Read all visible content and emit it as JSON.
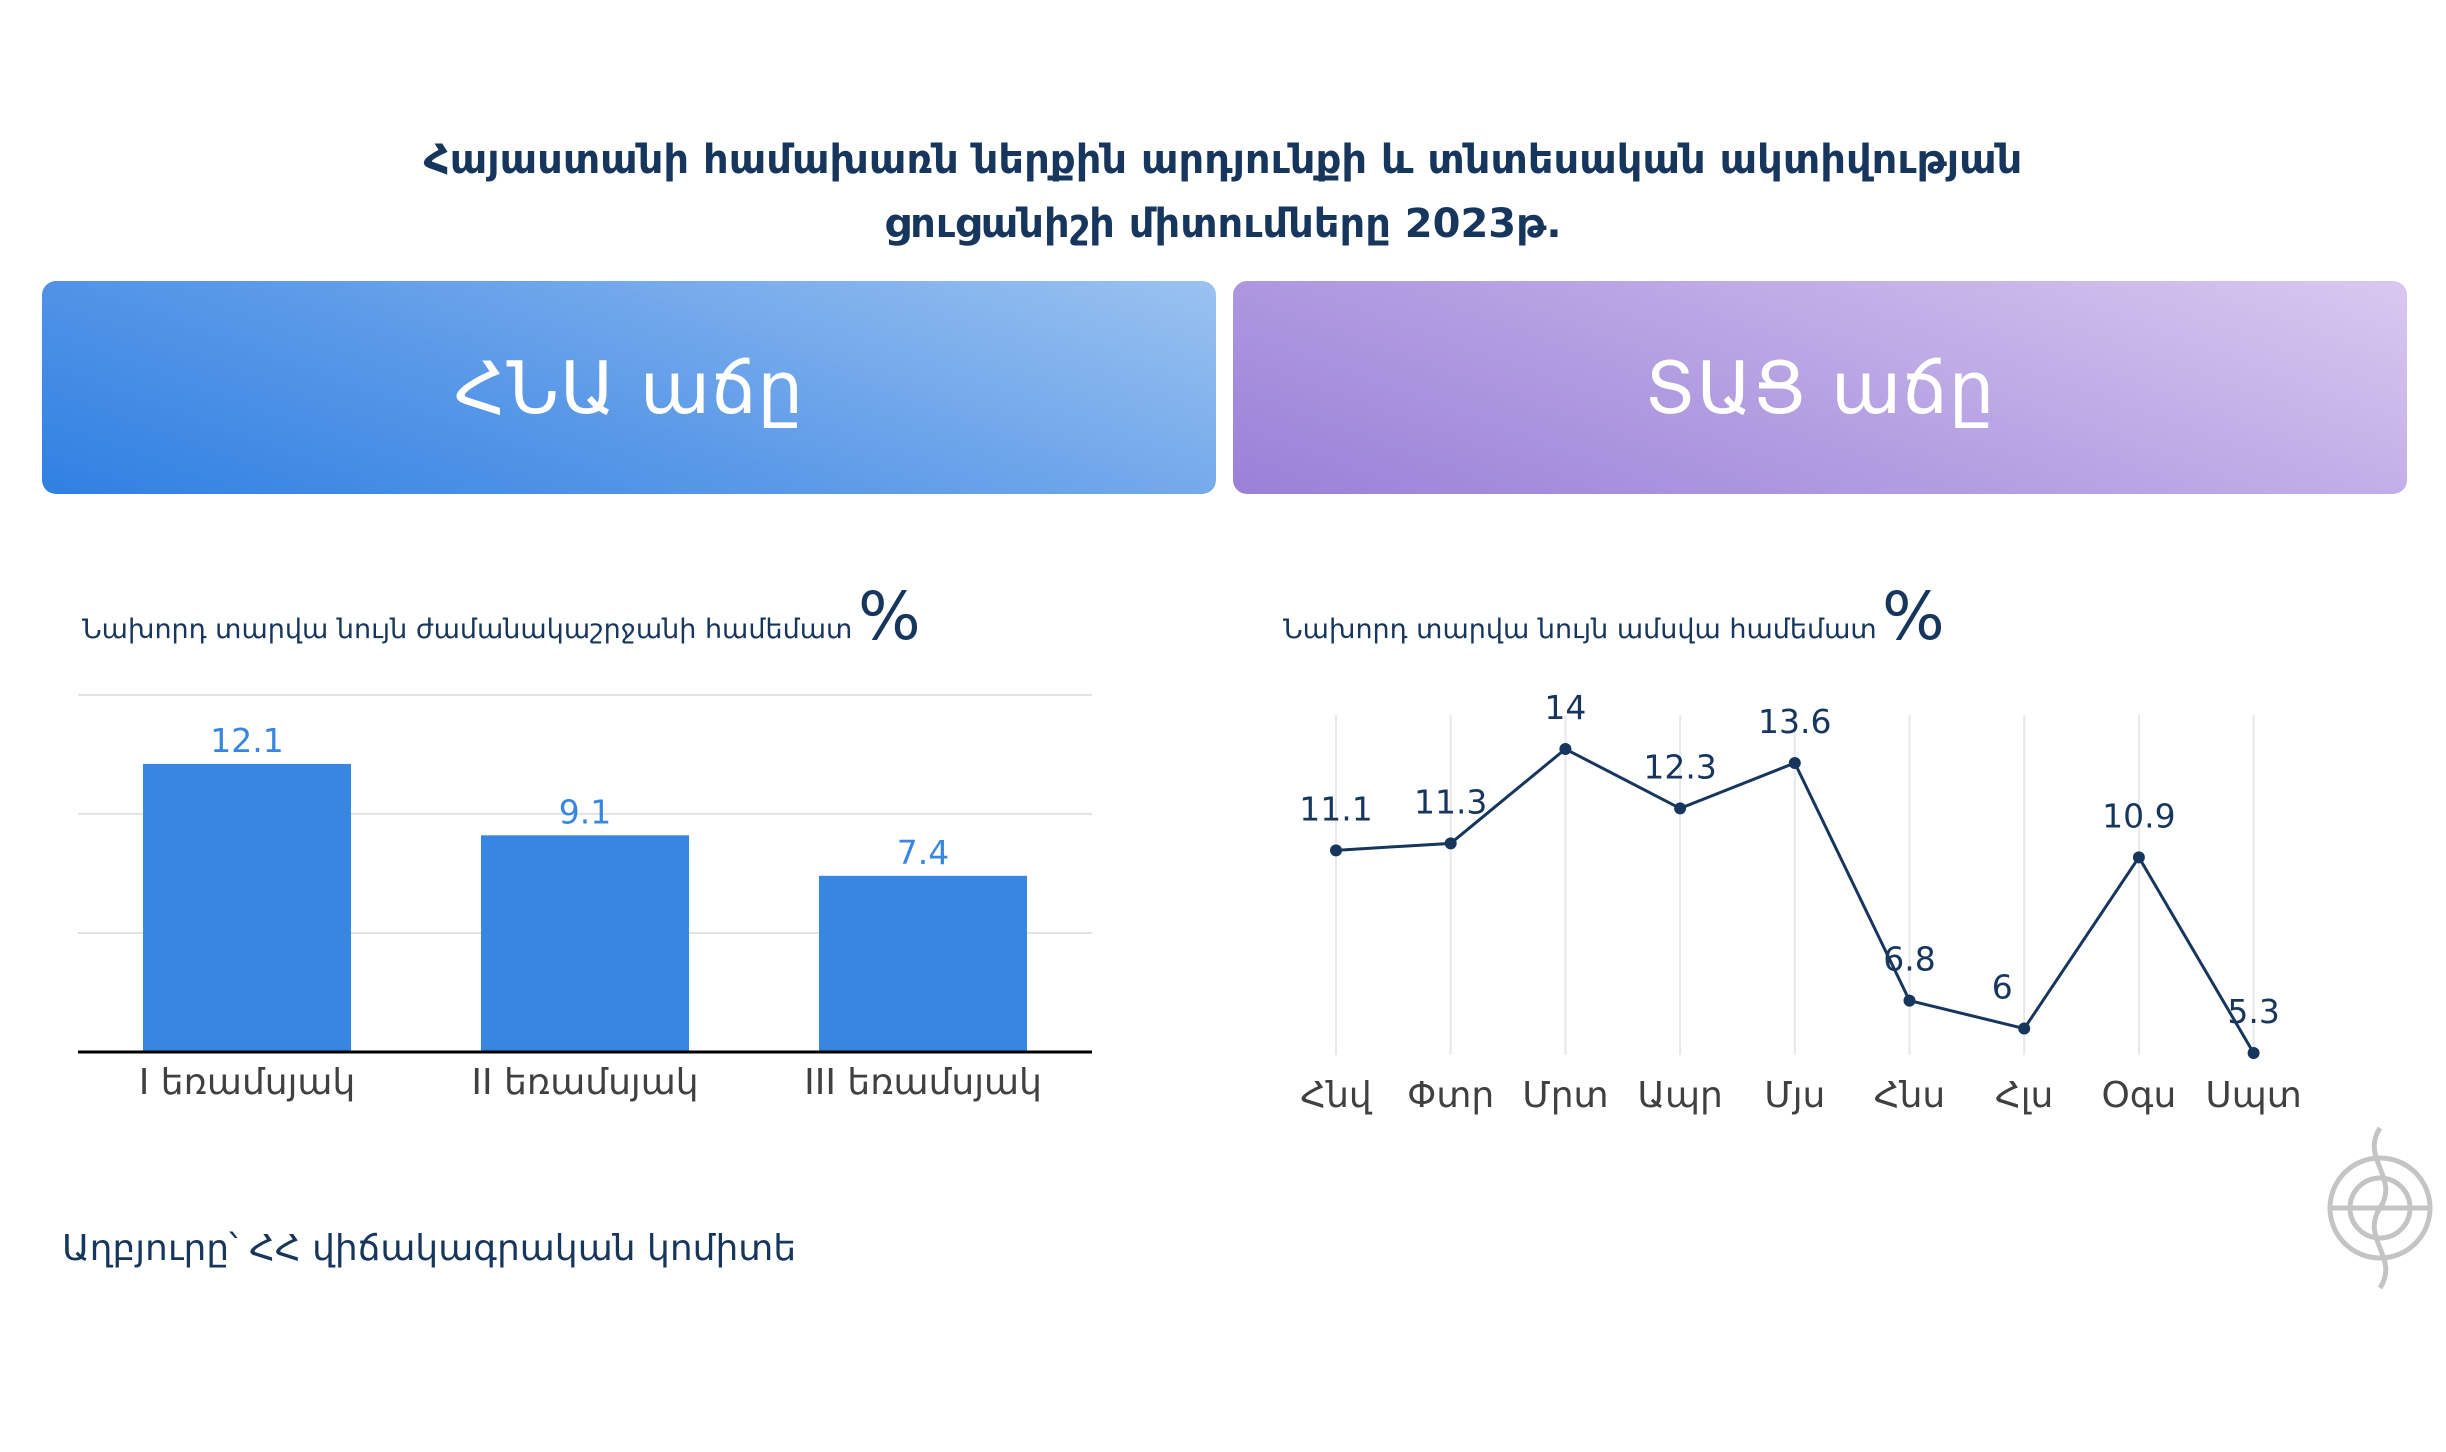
{
  "header": {
    "title_line1": "Հայաստանի համախառն ներքին արդյունքի և տնտեսական ակտիվության",
    "title_line2": "ցուցանիշի միտումները 2023թ."
  },
  "panels": {
    "left_banner": "ՀՆԱ աճը",
    "right_banner": "ՏԱՑ աճը",
    "left_subtitle": "Նախորդ տարվա նույն ժամանակաշրջանի համեմատ",
    "right_subtitle": "Նախորդ տարվա նույն ամսվա համեմատ",
    "percent_symbol": "%"
  },
  "footer": {
    "source": "Աղբյուրը՝ ՀՀ վիճակագրական կոմիտե"
  },
  "colors": {
    "bar": "#3686e2",
    "line": "#17365d",
    "navy_text": "#17365d"
  },
  "chart_data": [
    {
      "type": "bar",
      "categories": [
        "I եռամսյակ",
        "II եռամսյակ",
        "III եռամսյակ"
      ],
      "values": [
        12.1,
        9.1,
        7.4
      ],
      "ylim": [
        0,
        15
      ],
      "grid": true,
      "data_labels": true
    },
    {
      "type": "line",
      "categories": [
        "Հնվ",
        "Փտր",
        "Մրտ",
        "Ապր",
        "Մյս",
        "Հնս",
        "Հլս",
        "Օգս",
        "Սպտ"
      ],
      "values": [
        11.1,
        11.3,
        14,
        12.3,
        13.6,
        6.8,
        6,
        10.9,
        5.3
      ],
      "grid": true,
      "data_labels": true
    }
  ]
}
